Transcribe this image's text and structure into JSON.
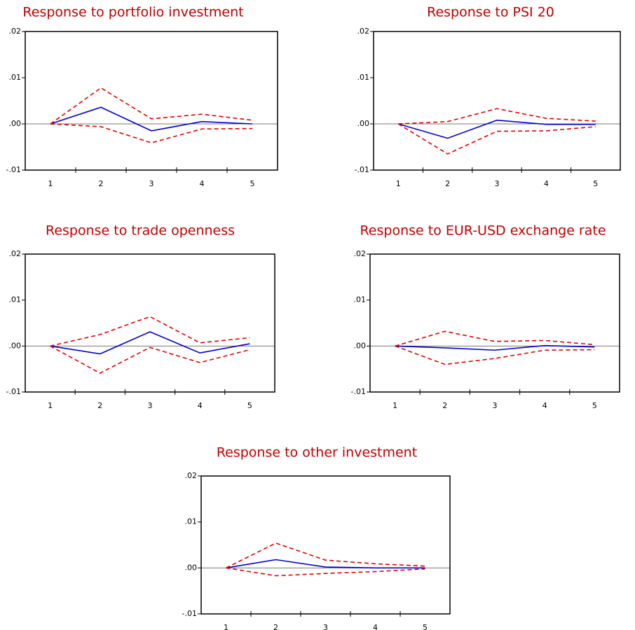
{
  "chart_data": [
    {
      "type": "line",
      "title": "Response to portfolio investment",
      "x": [
        1,
        2,
        3,
        4,
        5
      ],
      "xlim": [
        0.5,
        5.5
      ],
      "xticks": [
        1,
        2,
        3,
        4,
        5
      ],
      "ylim": [
        -0.01,
        0.02
      ],
      "yticks": [
        {
          "value": -0.01,
          "label": "-.01"
        },
        {
          "value": 0,
          "label": ".00"
        },
        {
          "value": 0.01,
          "label": ".01"
        },
        {
          "value": 0.02,
          "label": ".02"
        }
      ],
      "series": [
        {
          "color": "#0000cc",
          "dash": false,
          "values": [
            0,
            0.0036,
            -0.0015,
            0.0005,
            0
          ]
        },
        {
          "color": "#e00000",
          "dash": true,
          "values": [
            0,
            0.0078,
            0.0011,
            0.0021,
            0.0008
          ]
        },
        {
          "color": "#e00000",
          "dash": true,
          "values": [
            0,
            -0.0006,
            -0.0041,
            -0.0011,
            -0.001
          ]
        }
      ]
    },
    {
      "type": "line",
      "title": "Response to PSI 20",
      "x": [
        1,
        2,
        3,
        4,
        5
      ],
      "xlim": [
        0.5,
        5.5
      ],
      "xticks": [
        1,
        2,
        3,
        4,
        5
      ],
      "ylim": [
        -0.01,
        0.02
      ],
      "yticks": [
        {
          "value": -0.01,
          "label": "-.01"
        },
        {
          "value": 0,
          "label": ".00"
        },
        {
          "value": 0.01,
          "label": ".01"
        },
        {
          "value": 0.02,
          "label": ".02"
        }
      ],
      "series": [
        {
          "color": "#0000cc",
          "dash": false,
          "values": [
            0,
            -0.0031,
            0.0008,
            -0.0001,
            -0.0001
          ]
        },
        {
          "color": "#e00000",
          "dash": true,
          "values": [
            0,
            0.0005,
            0.0033,
            0.0012,
            0.0006
          ]
        },
        {
          "color": "#e00000",
          "dash": true,
          "values": [
            0,
            -0.0065,
            -0.0016,
            -0.0015,
            -0.0006
          ]
        }
      ]
    },
    {
      "type": "line",
      "title": "Response to trade openness",
      "x": [
        1,
        2,
        3,
        4,
        5
      ],
      "xlim": [
        0.5,
        5.5
      ],
      "xticks": [
        1,
        2,
        3,
        4,
        5
      ],
      "ylim": [
        -0.01,
        0.02
      ],
      "yticks": [
        {
          "value": -0.01,
          "label": "-.01"
        },
        {
          "value": 0,
          "label": ".00"
        },
        {
          "value": 0.01,
          "label": ".01"
        },
        {
          "value": 0.02,
          "label": ".02"
        }
      ],
      "series": [
        {
          "color": "#0000cc",
          "dash": false,
          "values": [
            0,
            -0.0017,
            0.0031,
            -0.0015,
            0.0005
          ]
        },
        {
          "color": "#e00000",
          "dash": true,
          "values": [
            0,
            0.0025,
            0.0064,
            0.0007,
            0.0018
          ]
        },
        {
          "color": "#e00000",
          "dash": true,
          "values": [
            0,
            -0.0059,
            -0.0003,
            -0.0036,
            -0.0008
          ]
        }
      ]
    },
    {
      "type": "line",
      "title": "Response to EUR-USD exchange rate",
      "x": [
        1,
        2,
        3,
        4,
        5
      ],
      "xlim": [
        0.5,
        5.5
      ],
      "xticks": [
        1,
        2,
        3,
        4,
        5
      ],
      "ylim": [
        -0.01,
        0.02
      ],
      "yticks": [
        {
          "value": -0.01,
          "label": "-.01"
        },
        {
          "value": 0,
          "label": ".00"
        },
        {
          "value": 0.01,
          "label": ".01"
        },
        {
          "value": 0.02,
          "label": ".02"
        }
      ],
      "series": [
        {
          "color": "#0000cc",
          "dash": false,
          "values": [
            0,
            -0.0004,
            -0.0009,
            0.0001,
            -0.0002
          ]
        },
        {
          "color": "#e00000",
          "dash": true,
          "values": [
            0,
            0.0032,
            0.001,
            0.0012,
            0.0003
          ]
        },
        {
          "color": "#e00000",
          "dash": true,
          "values": [
            0,
            -0.004,
            -0.0027,
            -0.0009,
            -0.0008
          ]
        }
      ]
    },
    {
      "type": "line",
      "title": "Response to other investment",
      "x": [
        1,
        2,
        3,
        4,
        5
      ],
      "xlim": [
        0.5,
        5.5
      ],
      "xticks": [
        1,
        2,
        3,
        4,
        5
      ],
      "ylim": [
        -0.01,
        0.02
      ],
      "yticks": [
        {
          "value": -0.01,
          "label": "-.01"
        },
        {
          "value": 0,
          "label": ".00"
        },
        {
          "value": 0.01,
          "label": ".01"
        },
        {
          "value": 0.02,
          "label": ".02"
        }
      ],
      "series": [
        {
          "color": "#0000cc",
          "dash": false,
          "values": [
            0,
            0.0018,
            0.0002,
            0,
            0
          ]
        },
        {
          "color": "#e00000",
          "dash": true,
          "values": [
            0,
            0.0054,
            0.0017,
            0.0009,
            0.0004
          ]
        },
        {
          "color": "#e00000",
          "dash": true,
          "values": [
            0,
            -0.0017,
            -0.0012,
            -0.0008,
            -0.0002
          ]
        }
      ]
    }
  ]
}
